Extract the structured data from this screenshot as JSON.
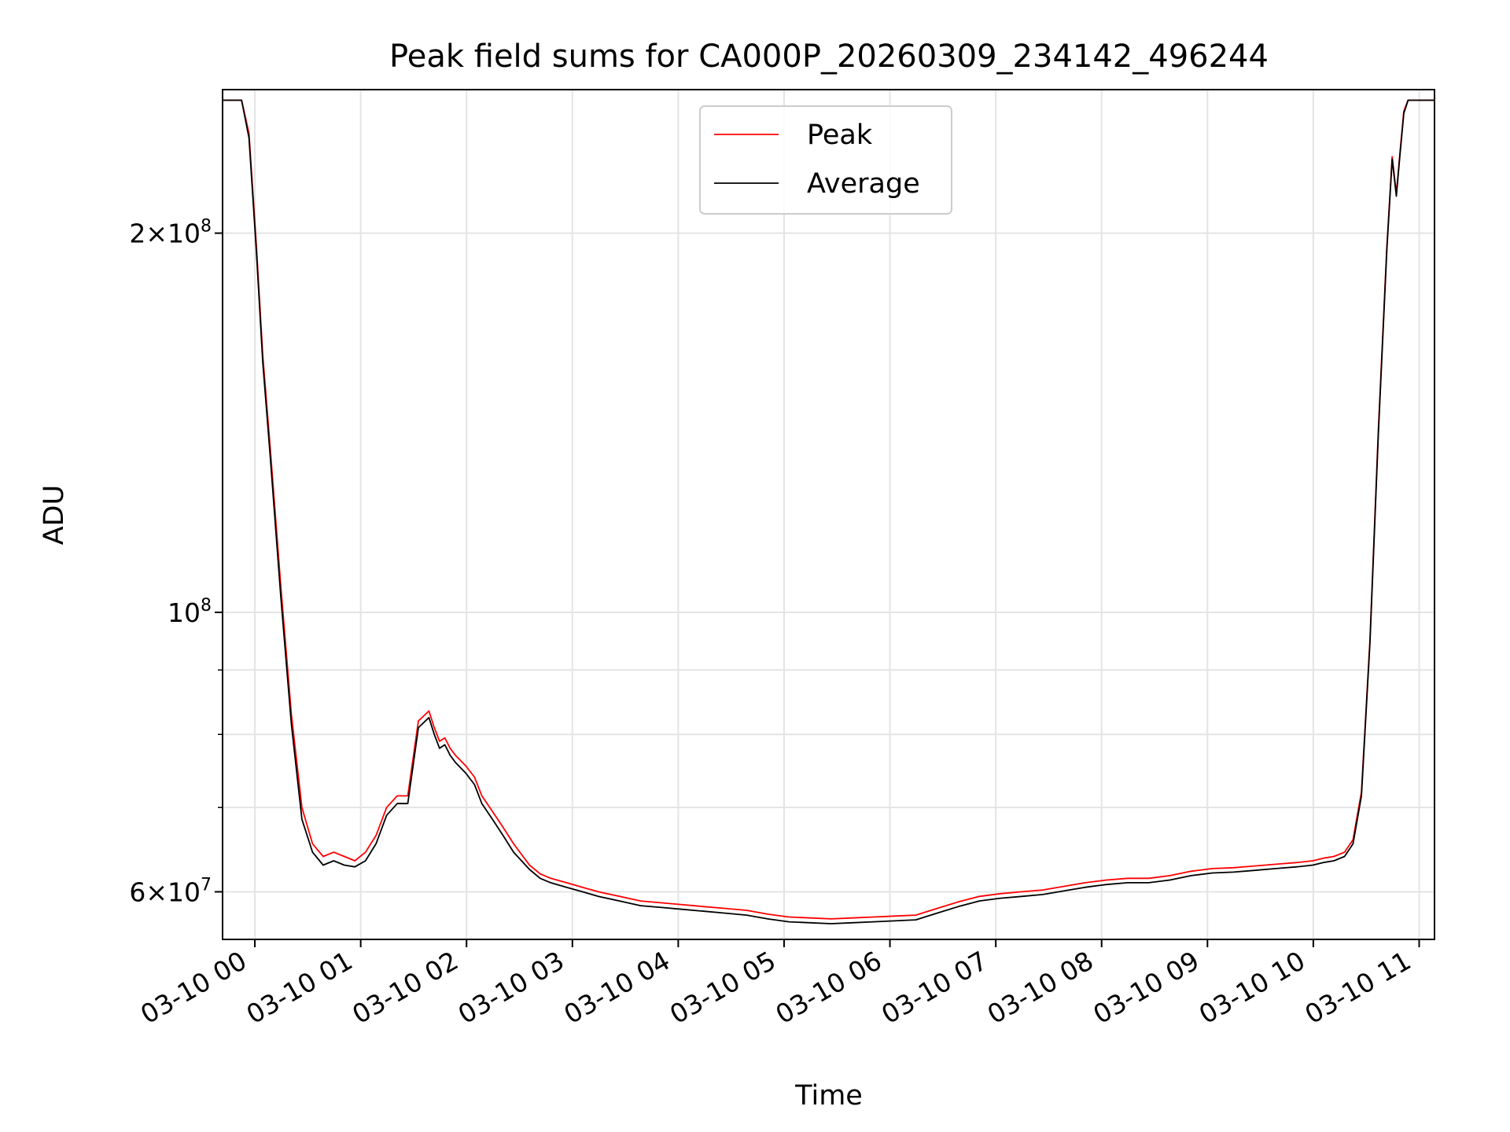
{
  "chart_data": {
    "type": "line",
    "title": "Peak field sums for CA000P_20260309_234142_496244",
    "xlabel": "Time",
    "ylabel": "ADU",
    "x_unit": "hours after 2026-03-09 23:41:42",
    "xlim": [
      0.0,
      11.45
    ],
    "ylim": [
      55000000,
      260000000
    ],
    "yscale": "log",
    "grid": true,
    "legend_position": "top-center",
    "x_ticks": [
      {
        "label": "03-10 00",
        "value": 0.305
      },
      {
        "label": "03-10 01",
        "value": 1.305
      },
      {
        "label": "03-10 02",
        "value": 2.305
      },
      {
        "label": "03-10 03",
        "value": 3.305
      },
      {
        "label": "03-10 04",
        "value": 4.305
      },
      {
        "label": "03-10 05",
        "value": 5.305
      },
      {
        "label": "03-10 06",
        "value": 6.305
      },
      {
        "label": "03-10 07",
        "value": 7.305
      },
      {
        "label": "03-10 08",
        "value": 8.305
      },
      {
        "label": "03-10 09",
        "value": 9.305
      },
      {
        "label": "03-10 10",
        "value": 10.305
      },
      {
        "label": "03-10 11",
        "value": 11.305
      }
    ],
    "y_major_ticks": [
      {
        "label": "2×10⁸",
        "mantissa": "2×10",
        "exp": "8",
        "value": 200000000
      },
      {
        "label": "10⁸",
        "mantissa": "10",
        "exp": "8",
        "value": 100000000
      },
      {
        "label": "6×10⁷",
        "mantissa": "6×10",
        "exp": "7",
        "value": 60000000
      }
    ],
    "y_minor_ticks": [
      70000000,
      80000000,
      90000000
    ],
    "series": [
      {
        "name": "Peak",
        "color": "#ff0000",
        "x": [
          0.0,
          0.18,
          0.25,
          0.32,
          0.38,
          0.45,
          0.55,
          0.65,
          0.75,
          0.85,
          0.95,
          1.05,
          1.15,
          1.25,
          1.35,
          1.45,
          1.55,
          1.65,
          1.75,
          1.85,
          1.95,
          2.0,
          2.05,
          2.1,
          2.15,
          2.2,
          2.3,
          2.38,
          2.45,
          2.55,
          2.65,
          2.75,
          2.9,
          3.0,
          3.1,
          3.25,
          3.4,
          3.55,
          3.75,
          3.95,
          4.15,
          4.35,
          4.55,
          4.75,
          4.95,
          5.15,
          5.35,
          5.55,
          5.75,
          5.95,
          6.15,
          6.35,
          6.55,
          6.75,
          6.95,
          7.15,
          7.35,
          7.55,
          7.75,
          7.95,
          8.15,
          8.35,
          8.55,
          8.75,
          8.95,
          9.15,
          9.35,
          9.55,
          9.75,
          9.95,
          10.15,
          10.3,
          10.4,
          10.5,
          10.6,
          10.68,
          10.76,
          10.84,
          10.92,
          11.0,
          11.05,
          11.09,
          11.12,
          11.16,
          11.2,
          11.25,
          11.3,
          11.45
        ],
        "y": [
          255000000,
          255000000,
          240000000,
          195000000,
          160000000,
          135000000,
          105000000,
          83000000,
          70000000,
          65500000,
          64000000,
          64500000,
          64000000,
          63500000,
          64500000,
          66500000,
          70000000,
          71500000,
          71500000,
          82000000,
          83500000,
          81000000,
          79000000,
          79500000,
          78000000,
          77000000,
          75500000,
          74000000,
          71500000,
          69500000,
          67500000,
          65500000,
          63000000,
          62000000,
          61500000,
          61000000,
          60500000,
          60000000,
          59500000,
          59000000,
          58800000,
          58600000,
          58400000,
          58200000,
          58000000,
          57600000,
          57300000,
          57200000,
          57100000,
          57200000,
          57300000,
          57400000,
          57500000,
          58200000,
          58900000,
          59500000,
          59800000,
          60000000,
          60200000,
          60600000,
          61000000,
          61300000,
          61500000,
          61500000,
          61800000,
          62300000,
          62600000,
          62700000,
          62900000,
          63100000,
          63300000,
          63500000,
          63800000,
          64000000,
          64500000,
          66000000,
          72000000,
          95000000,
          140000000,
          195000000,
          230000000,
          215000000,
          230000000,
          250000000,
          255000000,
          255000000,
          255000000,
          255000000
        ]
      },
      {
        "name": "Average",
        "color": "#000000",
        "x": [
          0.0,
          0.18,
          0.25,
          0.32,
          0.38,
          0.45,
          0.55,
          0.65,
          0.75,
          0.85,
          0.95,
          1.05,
          1.15,
          1.25,
          1.35,
          1.45,
          1.55,
          1.65,
          1.75,
          1.85,
          1.95,
          2.0,
          2.05,
          2.1,
          2.15,
          2.2,
          2.3,
          2.38,
          2.45,
          2.55,
          2.65,
          2.75,
          2.9,
          3.0,
          3.1,
          3.25,
          3.4,
          3.55,
          3.75,
          3.95,
          4.15,
          4.35,
          4.55,
          4.75,
          4.95,
          5.15,
          5.35,
          5.55,
          5.75,
          5.95,
          6.15,
          6.35,
          6.55,
          6.75,
          6.95,
          7.15,
          7.35,
          7.55,
          7.75,
          7.95,
          8.15,
          8.35,
          8.55,
          8.75,
          8.95,
          9.15,
          9.35,
          9.55,
          9.75,
          9.95,
          10.15,
          10.3,
          10.4,
          10.5,
          10.6,
          10.68,
          10.76,
          10.84,
          10.92,
          11.0,
          11.05,
          11.09,
          11.12,
          11.16,
          11.2,
          11.25,
          11.3,
          11.45
        ],
        "y": [
          255000000,
          255000000,
          238000000,
          193000000,
          158000000,
          133000000,
          103000000,
          81500000,
          68500000,
          64500000,
          63000000,
          63500000,
          63000000,
          62800000,
          63500000,
          65500000,
          69000000,
          70500000,
          70500000,
          81000000,
          82500000,
          80000000,
          78000000,
          78500000,
          77000000,
          76000000,
          74500000,
          73000000,
          70500000,
          68500000,
          66500000,
          64500000,
          62500000,
          61500000,
          61000000,
          60500000,
          60000000,
          59500000,
          59000000,
          58500000,
          58300000,
          58100000,
          57900000,
          57700000,
          57500000,
          57100000,
          56800000,
          56700000,
          56600000,
          56700000,
          56800000,
          56900000,
          57000000,
          57700000,
          58400000,
          59000000,
          59300000,
          59500000,
          59700000,
          60100000,
          60500000,
          60800000,
          61000000,
          61000000,
          61300000,
          61800000,
          62100000,
          62200000,
          62400000,
          62600000,
          62800000,
          63000000,
          63300000,
          63500000,
          64000000,
          65500000,
          71500000,
          94500000,
          139000000,
          194000000,
          229000000,
          214000000,
          229000000,
          249000000,
          255000000,
          255000000,
          255000000,
          255000000
        ]
      }
    ]
  }
}
